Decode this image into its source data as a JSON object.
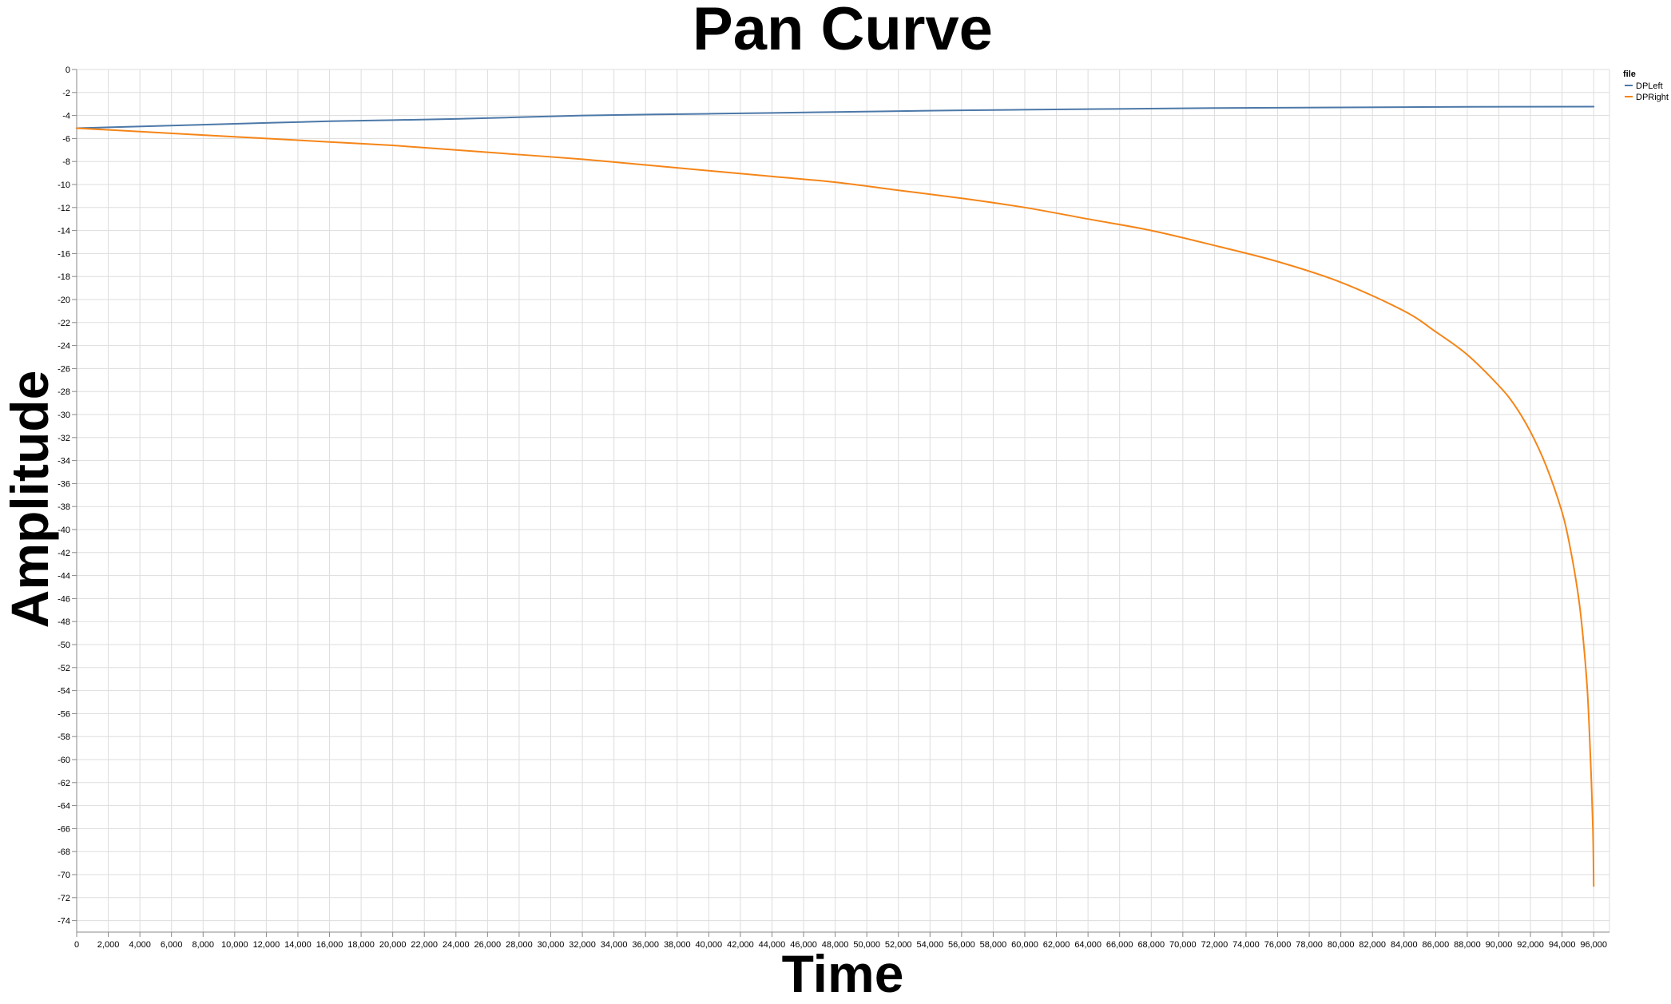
{
  "chart_data": {
    "type": "line",
    "title": "Pan Curve",
    "xlabel": "Time",
    "ylabel": "Amplitude",
    "xlim": [
      0,
      97000
    ],
    "ylim": [
      -75,
      0
    ],
    "x_ticks": [
      0,
      2000,
      4000,
      6000,
      8000,
      10000,
      12000,
      14000,
      16000,
      18000,
      20000,
      22000,
      24000,
      26000,
      28000,
      30000,
      32000,
      34000,
      36000,
      38000,
      40000,
      42000,
      44000,
      46000,
      48000,
      50000,
      52000,
      54000,
      56000,
      58000,
      60000,
      62000,
      64000,
      66000,
      68000,
      70000,
      72000,
      74000,
      76000,
      78000,
      80000,
      82000,
      84000,
      86000,
      88000,
      90000,
      92000,
      94000,
      96000
    ],
    "x_tick_labels": [
      "0",
      "2,000",
      "4,000",
      "6,000",
      "8,000",
      "10,000",
      "12,000",
      "14,000",
      "16,000",
      "18,000",
      "20,000",
      "22,000",
      "24,000",
      "26,000",
      "28,000",
      "30,000",
      "32,000",
      "34,000",
      "36,000",
      "38,000",
      "40,000",
      "42,000",
      "44,000",
      "46,000",
      "48,000",
      "50,000",
      "52,000",
      "54,000",
      "56,000",
      "58,000",
      "60,000",
      "62,000",
      "64,000",
      "66,000",
      "68,000",
      "70,000",
      "72,000",
      "74,000",
      "76,000",
      "78,000",
      "80,000",
      "82,000",
      "84,000",
      "86,000",
      "88,000",
      "90,000",
      "92,000",
      "94,000",
      "96,000"
    ],
    "y_ticks": [
      0,
      -2,
      -4,
      -6,
      -8,
      -10,
      -12,
      -14,
      -16,
      -18,
      -20,
      -22,
      -24,
      -26,
      -28,
      -30,
      -32,
      -34,
      -36,
      -38,
      -40,
      -42,
      -44,
      -46,
      -48,
      -50,
      -52,
      -54,
      -56,
      -58,
      -60,
      -62,
      -64,
      -66,
      -68,
      -70,
      -72,
      -74
    ],
    "y_tick_labels": [
      "0",
      "-2",
      "-4",
      "-6",
      "-8",
      "-10",
      "-12",
      "-14",
      "-16",
      "-18",
      "-20",
      "-22",
      "-24",
      "-26",
      "-28",
      "-30",
      "-32",
      "-34",
      "-36",
      "-38",
      "-40",
      "-42",
      "-44",
      "-46",
      "-48",
      "-50",
      "-52",
      "-54",
      "-56",
      "-58",
      "-60",
      "-62",
      "-64",
      "-66",
      "-68",
      "-70",
      "-72",
      "-74"
    ],
    "grid": true,
    "legend": {
      "title": "file",
      "placement": "top-right"
    },
    "series": [
      {
        "name": "DPLeft",
        "color": "#4c78a8",
        "x": [
          0,
          8000,
          16000,
          24000,
          32000,
          40000,
          48000,
          56000,
          64000,
          72000,
          80000,
          88000,
          96000
        ],
        "y": [
          -5.1,
          -4.8,
          -4.5,
          -4.3,
          -4.0,
          -3.85,
          -3.7,
          -3.55,
          -3.45,
          -3.35,
          -3.3,
          -3.25,
          -3.23
        ]
      },
      {
        "name": "DPRight",
        "color": "#f58518",
        "x": [
          0,
          4000,
          8000,
          12000,
          16000,
          20000,
          24000,
          28000,
          32000,
          36000,
          40000,
          44000,
          48000,
          52000,
          56000,
          60000,
          64000,
          68000,
          72000,
          76000,
          80000,
          84000,
          86000,
          88000,
          90000,
          91000,
          92000,
          93000,
          94000,
          94500,
          95000,
          95300,
          95600,
          95800,
          95950,
          96000
        ],
        "y": [
          -5.1,
          -5.4,
          -5.7,
          -6.0,
          -6.3,
          -6.6,
          -7.0,
          -7.4,
          -7.8,
          -8.3,
          -8.8,
          -9.3,
          -9.8,
          -10.5,
          -11.2,
          -12.0,
          -13.0,
          -14.0,
          -15.3,
          -16.7,
          -18.5,
          -21.0,
          -22.8,
          -24.8,
          -27.5,
          -29.2,
          -31.5,
          -34.5,
          -38.5,
          -41.5,
          -45.5,
          -49.0,
          -54.0,
          -60.0,
          -66.0,
          -71.0
        ]
      }
    ]
  }
}
